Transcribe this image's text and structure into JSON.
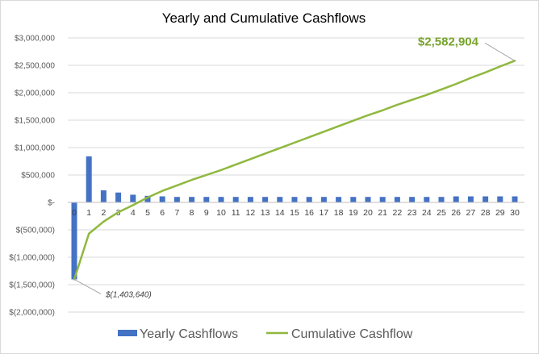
{
  "colors": {
    "bar": "#4472c4",
    "line": "#8fb83e",
    "grid": "#d9d9d9",
    "end_annotation": "#77a32c"
  },
  "chart_data": {
    "type": "bar",
    "title": "Yearly and Cumulative Cashflows",
    "xlabel": "",
    "ylabel": "",
    "ylim": [
      -2000000,
      3000000
    ],
    "y_ticks": [
      3000000,
      2500000,
      2000000,
      1500000,
      1000000,
      500000,
      0,
      -500000,
      -1000000,
      -1500000,
      -2000000
    ],
    "y_tick_labels": [
      "$3,000,000",
      "$2,500,000",
      "$2,000,000",
      "$1,500,000",
      "$1,000,000",
      "$500,000",
      "$-",
      "$(500,000)",
      "$(1,000,000)",
      "$(1,500,000)",
      "$(2,000,000)"
    ],
    "categories": [
      "0",
      "1",
      "2",
      "3",
      "4",
      "5",
      "6",
      "7",
      "8",
      "9",
      "10",
      "11",
      "12",
      "13",
      "14",
      "15",
      "16",
      "17",
      "18",
      "19",
      "20",
      "21",
      "22",
      "23",
      "24",
      "25",
      "26",
      "27",
      "28",
      "29",
      "30"
    ],
    "grid": true,
    "legend_position": "bottom",
    "series": [
      {
        "name": "Yearly Cashflows",
        "type": "bar",
        "values": [
          -1403640,
          840000,
          220000,
          180000,
          140000,
          120000,
          110000,
          100000,
          100000,
          100000,
          100000,
          100000,
          100000,
          100000,
          100000,
          100000,
          100000,
          100000,
          100000,
          100000,
          100000,
          100000,
          100000,
          100000,
          100000,
          100000,
          110000,
          110000,
          110000,
          110000,
          110000
        ]
      },
      {
        "name": "Cumulative Cashflow",
        "type": "line",
        "values": [
          -1403640,
          -570000,
          -350000,
          -180000,
          -50000,
          90000,
          210000,
          310000,
          410000,
          500000,
          590000,
          690000,
          790000,
          890000,
          990000,
          1090000,
          1190000,
          1290000,
          1390000,
          1490000,
          1590000,
          1680000,
          1780000,
          1870000,
          1960000,
          2060000,
          2160000,
          2270000,
          2370000,
          2480000,
          2582904
        ]
      }
    ],
    "annotations": {
      "end_label": "$2,582,904",
      "start_label": "$(1,403,640)"
    }
  }
}
